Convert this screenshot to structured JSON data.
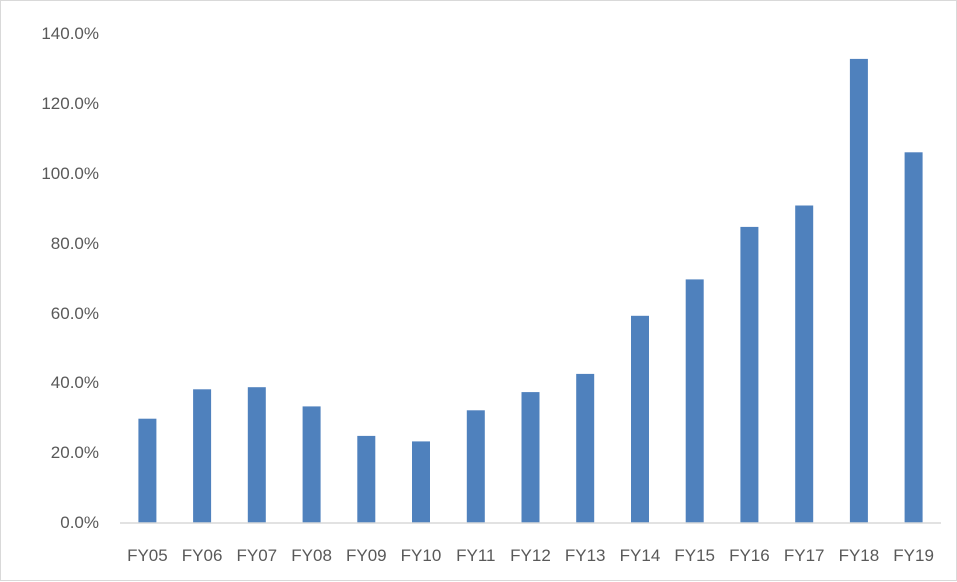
{
  "chart_data": {
    "type": "bar",
    "title": "",
    "xlabel": "",
    "ylabel": "",
    "categories": [
      "FY05",
      "FY06",
      "FY07",
      "FY08",
      "FY09",
      "FY10",
      "FY11",
      "FY12",
      "FY13",
      "FY14",
      "FY15",
      "FY16",
      "FY17",
      "FY18",
      "FY19"
    ],
    "series": [
      {
        "values": [
          29.8,
          38.2,
          38.8,
          33.3,
          24.9,
          23.3,
          32.2,
          37.4,
          42.6,
          59.2,
          69.6,
          84.6,
          90.7,
          132.6,
          105.9
        ]
      }
    ],
    "ylim": [
      0,
      140
    ],
    "yticks": [
      "0.0%",
      "20.0%",
      "40.0%",
      "60.0%",
      "80.0%",
      "100.0%",
      "120.0%",
      "140.0%"
    ],
    "grid": false,
    "legend": "none",
    "bar_color": "#4f81bd",
    "axis_color": "#d9d9d9",
    "text_color": "#595959"
  }
}
